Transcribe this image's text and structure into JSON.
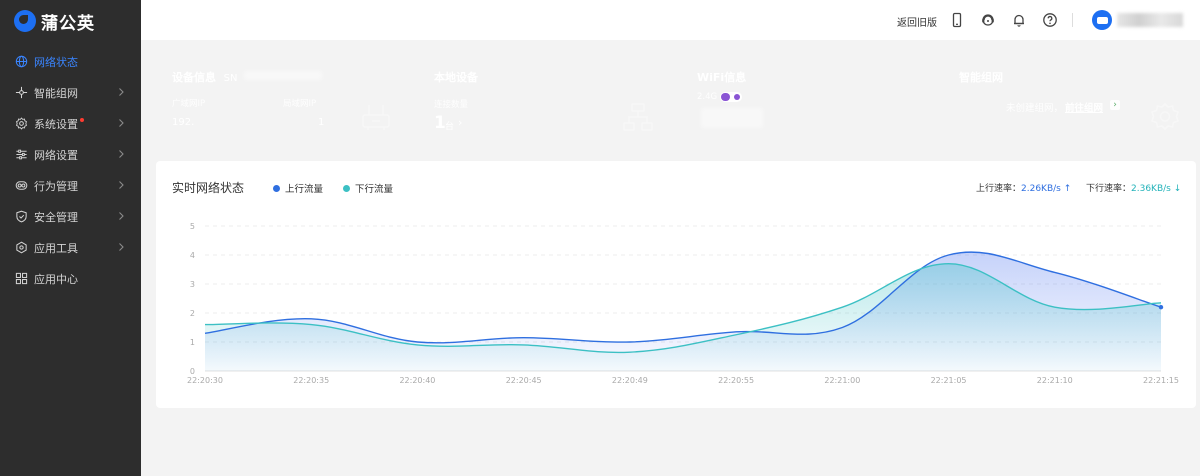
{
  "app": {
    "logo_text": "蒲公英"
  },
  "sidebar": {
    "items": [
      {
        "label": "网络状态",
        "icon": "globe-icon",
        "active": true,
        "has_arrow": false
      },
      {
        "label": "智能组网",
        "icon": "network-icon",
        "active": false,
        "has_arrow": true
      },
      {
        "label": "系统设置",
        "icon": "gear-icon",
        "active": false,
        "has_arrow": true,
        "badge_dot": true
      },
      {
        "label": "网络设置",
        "icon": "sliders-icon",
        "active": false,
        "has_arrow": true
      },
      {
        "label": "行为管理",
        "icon": "behavior-icon",
        "active": false,
        "has_arrow": true
      },
      {
        "label": "安全管理",
        "icon": "shield-icon",
        "active": false,
        "has_arrow": true
      },
      {
        "label": "应用工具",
        "icon": "tools-icon",
        "active": false,
        "has_arrow": true
      },
      {
        "label": "应用中心",
        "icon": "apps-grid-icon",
        "active": false,
        "has_arrow": false
      }
    ]
  },
  "header": {
    "old_version_link": "返回旧版",
    "icons": [
      "mobile-icon",
      "support-icon",
      "bell-icon",
      "help-icon"
    ]
  },
  "cards": {
    "device": {
      "title": "设备信息",
      "sn_label": "SN",
      "wan_label": "广域网IP",
      "wan_value": "192.",
      "lan_label": "局域网IP",
      "lan_value": "1",
      "color": "#3c79e6",
      "icon": "router-icon"
    },
    "local": {
      "title": "本地设备",
      "conn_label": "连接数量",
      "conn_value": "1",
      "conn_unit": "台",
      "color": "#22aeaa",
      "icon": "topology-icon"
    },
    "wifi": {
      "title": "WiFi信息",
      "band": "2.4G",
      "color": "#8a55d4"
    },
    "mesh": {
      "title": "智能组网",
      "status_text": "未创建组网，",
      "link_text": "前往组网",
      "color": "#5cad6a",
      "icon": "gear-outline-icon"
    }
  },
  "panel": {
    "title": "实时网络状态",
    "legend": [
      {
        "name": "上行流量",
        "color": "#2f6fe0"
      },
      {
        "name": "下行流量",
        "color": "#3cc0c4"
      }
    ],
    "up_rate_label": "上行速率：",
    "up_rate_value": "2.26KB/s",
    "up_arrow": "↑",
    "down_rate_label": "下行速率：",
    "down_rate_value": "2.36KB/s",
    "down_arrow": "↓"
  },
  "chart_data": {
    "type": "area",
    "x": [
      "22:20:30",
      "22:20:35",
      "22:20:40",
      "22:20:45",
      "22:20:49",
      "22:20:55",
      "22:21:00",
      "22:21:05",
      "22:21:10",
      "22:21:15"
    ],
    "ylim": [
      0,
      5
    ],
    "yticks": [
      0,
      1,
      2,
      3,
      4,
      5
    ],
    "grid": true,
    "legend_position": "top-left",
    "series": [
      {
        "name": "上行流量",
        "color": "#2f6fe0",
        "values": [
          1.3,
          1.8,
          1.0,
          1.15,
          1.0,
          1.35,
          1.5,
          4.0,
          3.4,
          2.2
        ]
      },
      {
        "name": "下行流量",
        "color": "#3cc0c4",
        "values": [
          1.6,
          1.6,
          0.9,
          0.9,
          0.65,
          1.25,
          2.2,
          3.7,
          2.2,
          2.35
        ]
      }
    ]
  }
}
